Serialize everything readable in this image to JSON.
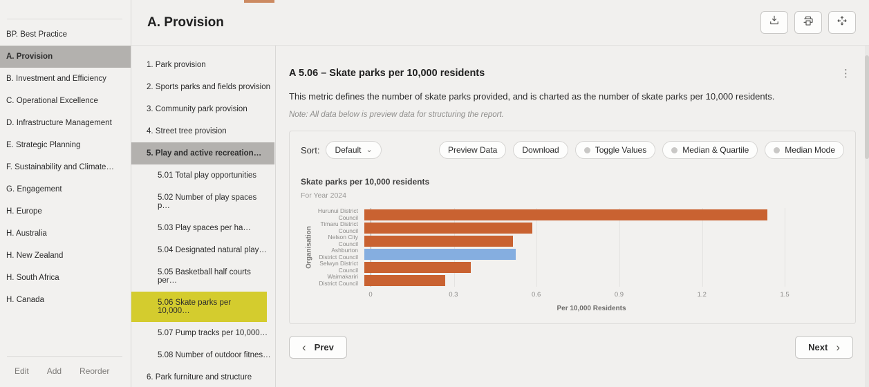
{
  "colors": {
    "accent_orange": "#c96231",
    "bar_blue": "#85aee0",
    "selected_gray": "#b3b1ae",
    "highlight_yellow": "#d4cc2e",
    "top_indicator": "#cc8a61"
  },
  "icons": {
    "caret_down": "⌄",
    "chevron_left": "‹",
    "chevron_right": "›",
    "kebab": "⋮"
  },
  "sidebar": {
    "items": [
      {
        "label": "BP. Best Practice",
        "selected": false
      },
      {
        "label": "A. Provision",
        "selected": true
      },
      {
        "label": "B. Investment and Efficiency",
        "selected": false
      },
      {
        "label": "C. Operational Excellence",
        "selected": false
      },
      {
        "label": "D. Infrastructure Management",
        "selected": false
      },
      {
        "label": "E. Strategic Planning",
        "selected": false
      },
      {
        "label": "F. Sustainability and Climate…",
        "selected": false
      },
      {
        "label": "G. Engagement",
        "selected": false
      },
      {
        "label": "H. Europe",
        "selected": false
      },
      {
        "label": "H. Australia",
        "selected": false
      },
      {
        "label": "H. New Zealand",
        "selected": false
      },
      {
        "label": "H. South Africa",
        "selected": false
      },
      {
        "label": "H. Canada",
        "selected": false
      }
    ],
    "footer": {
      "edit": "Edit",
      "add": "Add",
      "reorder": "Reorder"
    }
  },
  "header": {
    "title": "A. Provision"
  },
  "subnav": {
    "items": [
      {
        "label": "1. Park provision",
        "child": false,
        "selected": false,
        "highlighted": false
      },
      {
        "label": "2. Sports parks and fields provision",
        "child": false,
        "selected": false,
        "highlighted": false
      },
      {
        "label": "3. Community park provision",
        "child": false,
        "selected": false,
        "highlighted": false
      },
      {
        "label": "4. Street tree provision",
        "child": false,
        "selected": false,
        "highlighted": false
      },
      {
        "label": "5. Play and active recreation…",
        "child": false,
        "selected": true,
        "highlighted": false
      },
      {
        "label": "5.01 Total play opportunities",
        "child": true,
        "selected": false,
        "highlighted": false
      },
      {
        "label": "5.02 Number of play spaces p…",
        "child": true,
        "selected": false,
        "highlighted": false
      },
      {
        "label": "5.03 Play spaces per ha…",
        "child": true,
        "selected": false,
        "highlighted": false
      },
      {
        "label": "5.04 Designated natural play…",
        "child": true,
        "selected": false,
        "highlighted": false
      },
      {
        "label": "5.05 Basketball half courts per…",
        "child": true,
        "selected": false,
        "highlighted": false
      },
      {
        "label": "5.06 Skate parks per 10,000…",
        "child": true,
        "selected": false,
        "highlighted": true
      },
      {
        "label": "5.07 Pump tracks per 10,000…",
        "child": true,
        "selected": false,
        "highlighted": false
      },
      {
        "label": "5.08 Number of outdoor fitnes…",
        "child": true,
        "selected": false,
        "highlighted": false
      },
      {
        "label": "6. Park furniture and structure",
        "child": false,
        "selected": false,
        "highlighted": false
      }
    ]
  },
  "metric": {
    "title": "A 5.06 – Skate parks per 10,000 residents",
    "description": "This metric defines the number of skate parks provided, and is charted as the number of skate parks per 10,000 residents.",
    "note": "Note: All data below is preview data for structuring the report."
  },
  "toolbar": {
    "sort_label": "Sort:",
    "sort_value": "Default",
    "buttons": [
      "Preview Data",
      "Download"
    ],
    "toggles": [
      "Toggle Values",
      "Median & Quartile",
      "Median Mode"
    ]
  },
  "chart_data": {
    "type": "bar",
    "orientation": "horizontal",
    "title": "Skate parks per 10,000 residents",
    "subtitle": "For Year 2024",
    "xlabel": "Per 10,000 Residents",
    "ylabel": "Organisation",
    "xlim": [
      0,
      1.6
    ],
    "xticks": [
      "0",
      "0.3",
      "0.6",
      "0.9",
      "1.2",
      "1.5"
    ],
    "grid": true,
    "categories": [
      "Hurunui District Council",
      "Timaru District Council",
      "Nelson City Council",
      "Ashburton District Council",
      "Selwyn District Council",
      "Waimakariri District Council"
    ],
    "values": [
      1.44,
      0.6,
      0.53,
      0.54,
      0.38,
      0.29
    ],
    "bar_colors": [
      "#c96231",
      "#c96231",
      "#c96231",
      "#85aee0",
      "#c96231",
      "#c96231"
    ],
    "highlighted_category": "Ashburton District Council"
  },
  "pagination": {
    "prev": "Prev",
    "next": "Next"
  }
}
